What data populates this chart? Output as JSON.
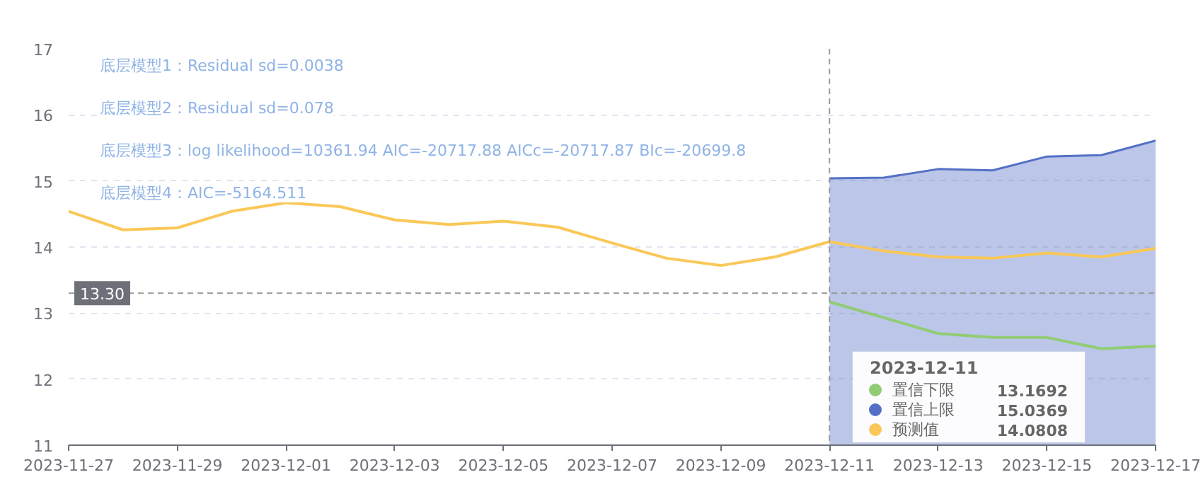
{
  "chart_data": {
    "type": "line",
    "annotations": [
      "底层模型1：Residual sd=0.0038",
      "底层模型2：Residual sd=0.078",
      "底层模型3：log likelihood=10361.94 AIC=-20717.88 AICc=-20717.87 BIc=-20699.8",
      "底层模型4：AIC=-5164.511",
      "13.1692",
      "15.0369",
      "14.0808"
    ],
    "series": [
      {
        "name": "置信下限",
        "color": "#91cc75",
        "x": [
          "2023-12-11",
          "2023-12-12",
          "2023-12-13",
          "2023-12-14",
          "2023-12-15",
          "2023-12-16",
          "2023-12-17"
        ],
        "values": [
          13.17,
          12.93,
          12.69,
          12.63,
          12.63,
          12.46,
          12.5
        ]
      },
      {
        "name": "置信上限",
        "color": "#5470c6",
        "type": "area",
        "x": [
          "2023-12-11",
          "2023-12-12",
          "2023-12-13",
          "2023-12-14",
          "2023-12-15",
          "2023-12-16",
          "2023-12-17"
        ],
        "values": [
          15.04,
          15.05,
          15.18,
          15.16,
          15.37,
          15.39,
          15.61
        ]
      },
      {
        "name": "预测值",
        "color": "#fac858",
        "x": [
          "2023-11-27",
          "2023-11-28",
          "2023-11-29",
          "2023-11-30",
          "2023-12-01",
          "2023-12-02",
          "2023-12-03",
          "2023-12-04",
          "2023-12-05",
          "2023-12-06",
          "2023-12-07",
          "2023-12-08",
          "2023-12-09",
          "2023-12-10",
          "2023-12-11",
          "2023-12-12",
          "2023-12-13",
          "2023-12-14",
          "2023-12-15",
          "2023-12-16",
          "2023-12-17"
        ],
        "values": [
          14.54,
          14.26,
          14.29,
          14.54,
          14.67,
          14.61,
          14.41,
          14.34,
          14.39,
          14.3,
          14.06,
          13.83,
          13.72,
          13.85,
          14.08,
          13.94,
          13.85,
          13.83,
          13.91,
          13.85,
          13.98
        ]
      }
    ],
    "legend": "bottom right",
    "legend_title": "2023-12-11",
    "xlim": [
      "2023-11-27",
      "2023-12-17"
    ],
    "xticks": [
      "2023-11-27",
      "2023-11-29",
      "2023-12-01",
      "2023-12-03",
      "2023-12-05",
      "2023-12-07",
      "2023-12-09",
      "2023-12-11",
      "2023-12-13",
      "2023-12-15",
      "2023-12-17"
    ],
    "ylim": [
      11,
      17
    ],
    "yticks": [
      11,
      12,
      13,
      14,
      15,
      16,
      17
    ],
    "grid": "y",
    "ref_lines": [
      {
        "axis": "y",
        "value": 13.3,
        "label": "13.30",
        "line_style": "dashed"
      },
      {
        "axis": "x",
        "value": "2023-12-11",
        "line_style": "dashed"
      }
    ]
  }
}
